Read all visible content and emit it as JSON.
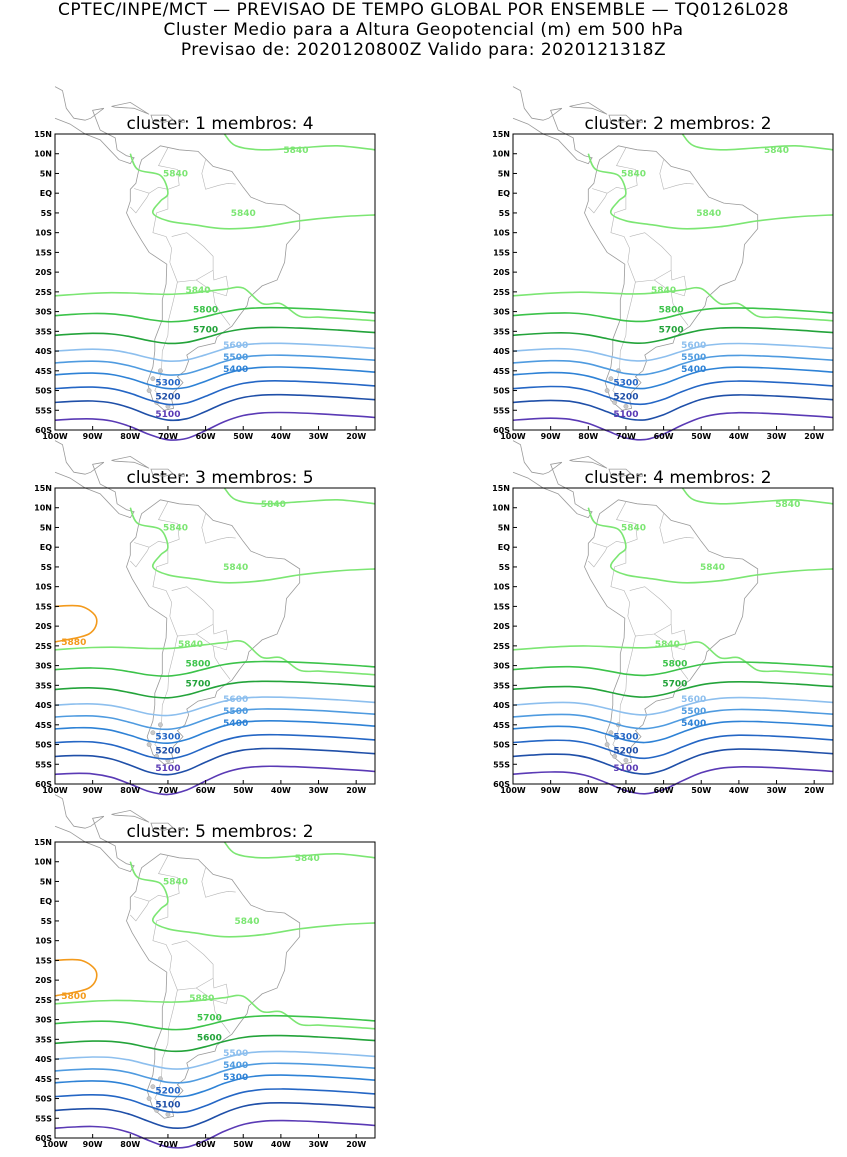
{
  "header": {
    "line1": "CPTEC/INPE/MCT — PREVISAO DE TEMPO GLOBAL POR ENSEMBLE — TQ0126L028",
    "line2": "Cluster Medio para a Altura Geopotencial (m) em 500 hPa",
    "line3": "Previsao de: 2020120800Z    Valido para: 2020121318Z"
  },
  "axes": {
    "lat_labels": [
      "15N",
      "10N",
      "5N",
      "EQ",
      "5S",
      "10S",
      "15S",
      "20S",
      "25S",
      "30S",
      "35S",
      "40S",
      "45S",
      "50S",
      "55S",
      "60S"
    ],
    "lon_labels": [
      "100W",
      "90W",
      "80W",
      "70W",
      "60W",
      "50W",
      "40W",
      "30W",
      "20W"
    ]
  },
  "colors": {
    "c5100": "#5a3ab5",
    "c5200": "#1f4fa8",
    "c5300": "#2466c5",
    "c5400": "#2e82d6",
    "c5500": "#4f9be0",
    "c5600": "#8dbfee",
    "c5700": "#23a33a",
    "c5800": "#3cc34a",
    "c5840": "#7ce673",
    "c5880": "#f39a1c",
    "coast": "#9a9a9a"
  },
  "panels": [
    {
      "title": "cluster: 1   membros: 4",
      "contour_labels": [
        "5840",
        "5840",
        "5840",
        "5840",
        "5800",
        "5700",
        "5600",
        "5500",
        "5400",
        "5300",
        "5200",
        "5100"
      ]
    },
    {
      "title": "cluster: 2   membros: 2",
      "contour_labels": [
        "5840",
        "5840",
        "5840",
        "5840",
        "5800",
        "5700",
        "5600",
        "5500",
        "5400",
        "5300",
        "5200",
        "5100"
      ]
    },
    {
      "title": "cluster: 3   membros: 5",
      "contour_labels": [
        "5840",
        "5840",
        "5840",
        "5840",
        "5880",
        "5800",
        "5700",
        "5600",
        "5500",
        "5400",
        "5300",
        "5200",
        "5100"
      ]
    },
    {
      "title": "cluster: 4   membros: 2",
      "contour_labels": [
        "5840",
        "5840",
        "5840",
        "5840",
        "5800",
        "5700",
        "5600",
        "5500",
        "5400",
        "5300",
        "5200",
        "5100"
      ]
    },
    {
      "title": "cluster: 5   membros: 2",
      "contour_labels": [
        "5840",
        "5840",
        "5840",
        "5880",
        "5800",
        "5700",
        "5600",
        "5500",
        "5400",
        "5300",
        "5200",
        "5100"
      ]
    }
  ]
}
